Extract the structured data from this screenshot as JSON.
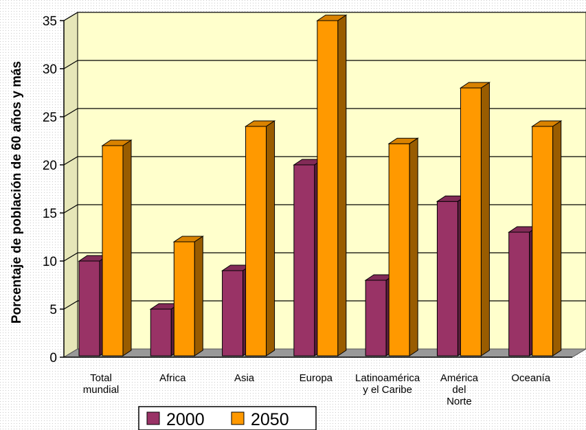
{
  "chart_data": {
    "type": "bar",
    "title": "",
    "xlabel": "",
    "ylabel": "Porcentaje de población de 60 años y más",
    "ylim": [
      0,
      35
    ],
    "yticks": [
      0,
      5,
      10,
      15,
      20,
      25,
      30,
      35
    ],
    "grid": true,
    "legend_position": "bottom",
    "categories": [
      [
        "Total",
        "mundial"
      ],
      [
        "Africa"
      ],
      [
        "Asia"
      ],
      [
        "Europa"
      ],
      [
        "Latinoamérica",
        "y el Caribe"
      ],
      [
        "América",
        "del",
        "Norte"
      ],
      [
        "Oceanía"
      ]
    ],
    "series": [
      {
        "name": "2000",
        "values": [
          10,
          5,
          9,
          20,
          8,
          16.2,
          13
        ],
        "color": "#993366"
      },
      {
        "name": "2050",
        "values": [
          22,
          12,
          24,
          35,
          22.2,
          28,
          24
        ],
        "color": "#ff9900"
      }
    ],
    "colors": {
      "wall": "#ffffcc",
      "floor": "#999999",
      "gridline": "#000000"
    }
  }
}
